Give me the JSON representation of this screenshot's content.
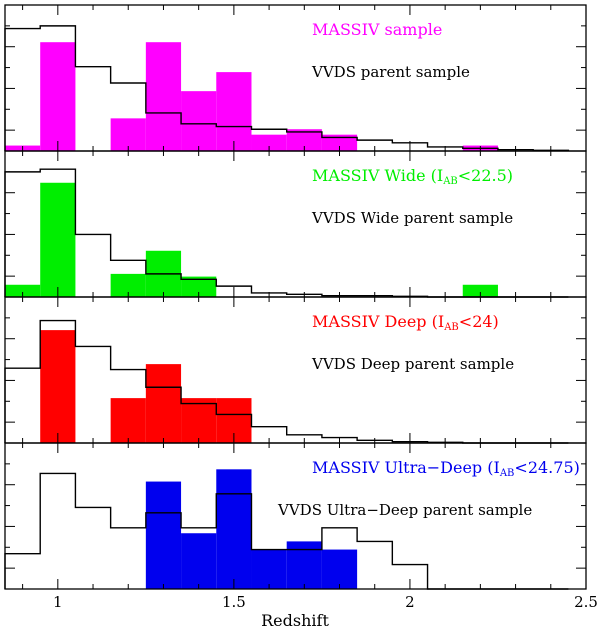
{
  "chart_data": {
    "type": "histogram",
    "xlabel": "Redshift",
    "xlim": [
      0.85,
      2.5
    ],
    "bin_edges": [
      0.85,
      0.95,
      1.05,
      1.15,
      1.25,
      1.35,
      1.45,
      1.55,
      1.65,
      1.75,
      1.85,
      1.95,
      2.05,
      2.15,
      2.25,
      2.35,
      2.45
    ],
    "x_ticks": [
      {
        "value": 1,
        "label": "1"
      },
      {
        "value": 1.5,
        "label": "1.5"
      },
      {
        "value": 2,
        "label": "2"
      },
      {
        "value": 2.5,
        "label": "2.5"
      }
    ],
    "ylim": [
      0,
      1
    ],
    "panels": [
      {
        "title": "MASSIV sample",
        "title_sub": "",
        "title_tail": "",
        "legend": "VVDS parent sample",
        "color": "#ff00ff",
        "filled": [
          0.04,
          0.8,
          0,
          0.24,
          0.8,
          0.44,
          0.58,
          0.12,
          0.16,
          0.12,
          0,
          0,
          0,
          0.04,
          0,
          0
        ],
        "outline": [
          0.9,
          0.92,
          0.62,
          0.5,
          0.28,
          0.2,
          0.18,
          0.16,
          0.14,
          0.1,
          0.08,
          0.06,
          0.03,
          0.02,
          0.01,
          0.005
        ]
      },
      {
        "title": "MASSIV Wide (I",
        "title_sub": "AB",
        "title_tail": "<22.5)",
        "legend": "VVDS Wide parent sample",
        "color": "#00ee00",
        "filled": [
          0.09,
          0.84,
          0,
          0.17,
          0.34,
          0.15,
          0,
          0,
          0,
          0,
          0,
          0,
          0,
          0.09,
          0,
          0
        ],
        "outline": [
          0.92,
          0.94,
          0.46,
          0.27,
          0.17,
          0.13,
          0.08,
          0.03,
          0.02,
          0.01,
          0.01,
          0.005,
          0,
          0,
          0,
          0
        ]
      },
      {
        "title": "MASSIV Deep (I",
        "title_sub": "AB",
        "title_tail": "<24)",
        "legend": "VVDS Deep parent sample",
        "color": "#ff0000",
        "filled": [
          0,
          0.83,
          0,
          0.33,
          0.58,
          0.33,
          0.33,
          0,
          0,
          0,
          0,
          0,
          0,
          0,
          0,
          0
        ],
        "outline": [
          0.55,
          0.9,
          0.71,
          0.54,
          0.41,
          0.29,
          0.21,
          0.12,
          0.06,
          0.04,
          0.02,
          0.01,
          0.005,
          0,
          0,
          0
        ]
      },
      {
        "title": "MASSIV Ultra−Deep (I",
        "title_sub": "AB",
        "title_tail": "<24.75)",
        "legend": "VVDS Ultra−Deep parent sample",
        "color": "#0000ee",
        "filled": [
          0,
          0,
          0,
          0,
          0.79,
          0.41,
          0.88,
          0.29,
          0.35,
          0.29,
          0,
          0,
          0,
          0,
          0,
          0
        ],
        "outline": [
          0.26,
          0.85,
          0.6,
          0.45,
          0.56,
          0.45,
          0.7,
          0.29,
          0.29,
          0.45,
          0.35,
          0.18,
          0,
          0,
          0,
          0
        ]
      }
    ]
  }
}
